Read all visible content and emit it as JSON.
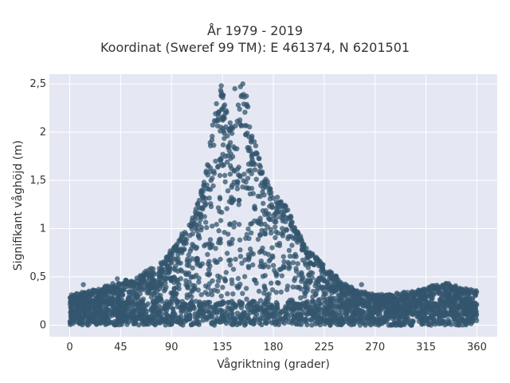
{
  "chart_data": {
    "type": "scatter",
    "title": [
      "År 1979 - 2019",
      "Koordinat (Sweref 99 TM): E 461374, N 6201501"
    ],
    "xlabel": "Vågriktning (grader)",
    "ylabel": "Signifikant våghöjd (m)",
    "xlim": [
      -18,
      378
    ],
    "ylim": [
      -0.12,
      2.6
    ],
    "xticks": [
      0,
      45,
      90,
      135,
      180,
      225,
      270,
      315,
      360
    ],
    "xtick_labels": [
      "0",
      "45",
      "90",
      "135",
      "180",
      "225",
      "270",
      "315",
      "360"
    ],
    "yticks": [
      0,
      0.5,
      1,
      1.5,
      2,
      2.5
    ],
    "ytick_labels": [
      "0",
      "0,5",
      "1",
      "1,5",
      "2",
      "2,5"
    ],
    "grid": true,
    "marker_color": "#33566e",
    "background_color": "#e5e8f2",
    "envelope": {
      "direction": [
        0,
        20,
        40,
        60,
        80,
        95,
        110,
        120,
        128,
        132,
        136,
        140,
        145,
        150,
        155,
        160,
        170,
        180,
        190,
        200,
        210,
        225,
        240,
        255,
        270,
        300,
        330,
        360
      ],
      "max_height": [
        0.3,
        0.35,
        0.42,
        0.5,
        0.62,
        0.85,
        1.15,
        1.55,
        2.2,
        2.45,
        2.4,
        2.1,
        2.05,
        2.3,
        2.5,
        2.05,
        1.6,
        1.35,
        1.25,
        1.0,
        0.78,
        0.6,
        0.45,
        0.35,
        0.3,
        0.33,
        0.42,
        0.35
      ]
    },
    "outliers": [
      {
        "x": 134,
        "y": 2.48
      },
      {
        "x": 135,
        "y": 2.38
      },
      {
        "x": 146,
        "y": 2.45
      },
      {
        "x": 151,
        "y": 2.47
      },
      {
        "x": 153,
        "y": 2.5
      },
      {
        "x": 149,
        "y": 2.28
      },
      {
        "x": 12,
        "y": 0.42
      },
      {
        "x": 42,
        "y": 0.48
      },
      {
        "x": 335,
        "y": 0.43
      },
      {
        "x": 345,
        "y": 0.38
      },
      {
        "x": 258,
        "y": 0.42
      }
    ]
  }
}
